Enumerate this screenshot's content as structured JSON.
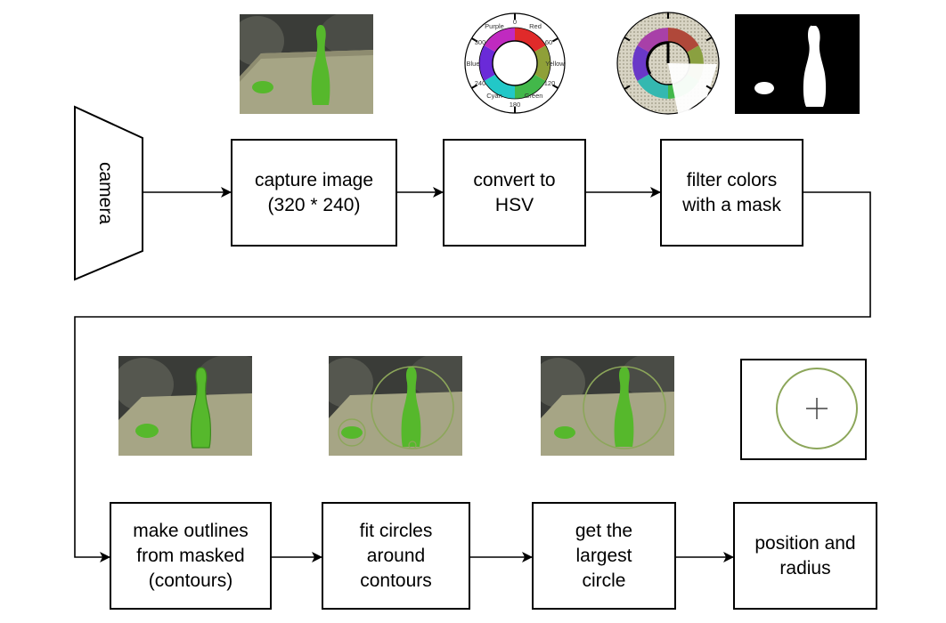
{
  "source": {
    "label": "camera"
  },
  "steps": [
    {
      "id": "capture",
      "label": "capture image\n(320 * 240)"
    },
    {
      "id": "hsv",
      "label": "convert to\nHSV"
    },
    {
      "id": "filter",
      "label": "filter colors\nwith a mask"
    },
    {
      "id": "contours",
      "label": "make outlines\nfrom masked\n(contours)"
    },
    {
      "id": "fit",
      "label": "fit circles\naround\ncontours"
    },
    {
      "id": "largest",
      "label": "get the\nlargest\ncircle"
    },
    {
      "id": "output",
      "label": "position and\nradius"
    }
  ],
  "hue_wheel": {
    "labels": [
      "0",
      "Red",
      "60",
      "Yellow",
      "120",
      "Green",
      "180",
      "Cyan",
      "240",
      "Blue",
      "300",
      "Purple"
    ]
  },
  "colors": {
    "object_green": "#56b82c",
    "table": "#a6a585",
    "background_dark": "#3a3c38"
  }
}
